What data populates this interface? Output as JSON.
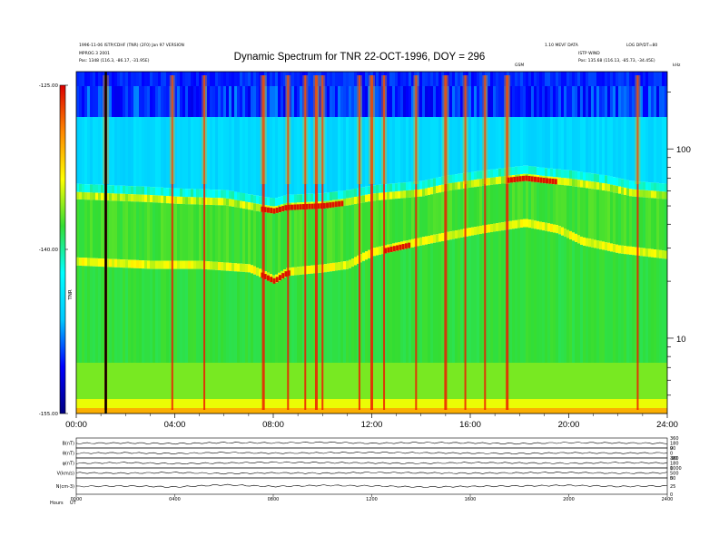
{
  "header": {
    "title": "Dynamic Spectrum for TNR 22-OCT-1996, DOY = 296",
    "left_line1": "1996-11-06 ISTP/CDHF (TNR) (2F0)  Jan 97 VERSION",
    "left_line2": "MPROG 3 2001",
    "left_line3": "Pos: 1348 (116.3, -86.17, -31.95E)",
    "right_line1": "1.10 MEVF DATA",
    "right_line2": "LOG DP/DT=80",
    "right_line3": "ISTP WIND",
    "right_line4": "Pos: 135.68 (116.13, -85.73, -34.45E)",
    "right_unit": "kHz",
    "mid_tag": "GSM",
    "cb_label": "TNR"
  },
  "chart_data": [
    {
      "type": "heatmap",
      "title": "Dynamic Spectrum for TNR 22-OCT-1996, DOY = 296",
      "x_unit": "hours UT",
      "xlim": [
        0,
        24
      ],
      "x_ticks": [
        "00:00",
        "04:00",
        "08:00",
        "12:00",
        "16:00",
        "20:00",
        "24:00"
      ],
      "y_unit": "kHz",
      "y_scale": "log",
      "ylim": [
        4,
        256
      ],
      "y_ticks": [
        10,
        100
      ],
      "colorbar": {
        "label": "TNR",
        "range": [
          -155.0,
          -125.0
        ],
        "ticks": [
          "-125.00",
          "-140.00",
          "-155.00"
        ],
        "colors": [
          "#000080",
          "#0000ff",
          "#00c8ff",
          "#00ffff",
          "#33dd33",
          "#ffff00",
          "#ff8800",
          "#dd0000"
        ]
      },
      "features": {
        "upper_band_khz": [
          [
            0,
            56
          ],
          [
            1.5,
            55
          ],
          [
            3,
            54
          ],
          [
            4,
            53
          ],
          [
            6,
            52
          ],
          [
            7.5,
            48
          ],
          [
            8,
            47
          ],
          [
            8.5,
            49
          ],
          [
            10,
            50
          ],
          [
            11,
            52
          ],
          [
            12,
            55
          ],
          [
            14,
            58
          ],
          [
            15,
            62
          ],
          [
            16.5,
            66
          ],
          [
            18.2,
            70
          ],
          [
            19,
            68
          ],
          [
            20,
            66
          ],
          [
            21.5,
            62
          ],
          [
            22.5,
            58
          ],
          [
            24,
            56
          ]
        ],
        "lower_band_khz": [
          [
            0,
            25
          ],
          [
            1.5,
            24.5
          ],
          [
            3,
            24
          ],
          [
            5,
            24
          ],
          [
            7,
            23
          ],
          [
            7.5,
            21.5
          ],
          [
            8,
            20
          ],
          [
            8.5,
            22
          ],
          [
            10,
            23
          ],
          [
            11,
            24
          ],
          [
            12,
            28
          ],
          [
            13.5,
            31
          ],
          [
            15,
            34
          ],
          [
            16.5,
            37
          ],
          [
            18.2,
            40
          ],
          [
            19.5,
            37
          ],
          [
            20.5,
            32
          ],
          [
            22,
            29
          ],
          [
            24,
            27
          ]
        ],
        "burst_hours": [
          1.2,
          3.9,
          5.2,
          7.6,
          8.6,
          9.3,
          9.75,
          10.0,
          11.5,
          12.0,
          12.5,
          13.8,
          15.0,
          15.8,
          16.6,
          17.5,
          22.8
        ]
      }
    },
    {
      "type": "line",
      "xlim": [
        0,
        24
      ],
      "x_ticks": [
        "0000",
        "0400",
        "0800",
        "1200",
        "1600",
        "2000",
        "2400"
      ],
      "series": [
        {
          "name": "B(nT)",
          "values": [
            32,
            33,
            31,
            34,
            33,
            35,
            32,
            34,
            33,
            31,
            34,
            33,
            32
          ]
        },
        {
          "name": "θ(nT)",
          "values": [
            20,
            21,
            19,
            22,
            20,
            21,
            22,
            21,
            20,
            19,
            21,
            20,
            21
          ]
        },
        {
          "name": "φ(nT)",
          "values": [
            10,
            12,
            9,
            11,
            13,
            12,
            11,
            10,
            12,
            11,
            10,
            12,
            11
          ]
        },
        {
          "name": "V(km/s)",
          "values": [
            -3,
            -4,
            -2,
            -5,
            -3,
            -4,
            -2,
            -3,
            -4,
            -3,
            -2,
            -4,
            -3
          ]
        },
        {
          "name": "N(cm-3)",
          "values": [
            -25,
            -24,
            -26,
            -22,
            -25,
            -23,
            -24,
            -26,
            -25,
            -24,
            -23,
            -25,
            -24
          ]
        }
      ],
      "row_labels": [
        "B(nT)",
        "θ(nT)",
        "φ(nT)",
        "V(km/s)",
        "N(cm-3)"
      ],
      "right_scales": [
        [
          "360",
          "180",
          "0"
        ],
        [
          "90",
          "0",
          "-90"
        ],
        [
          "360",
          "180",
          "0"
        ],
        [
          "1000",
          "500",
          "0"
        ],
        [
          "50",
          "25",
          "0"
        ]
      ],
      "footer_labels": [
        "Hours",
        "UT"
      ]
    }
  ]
}
